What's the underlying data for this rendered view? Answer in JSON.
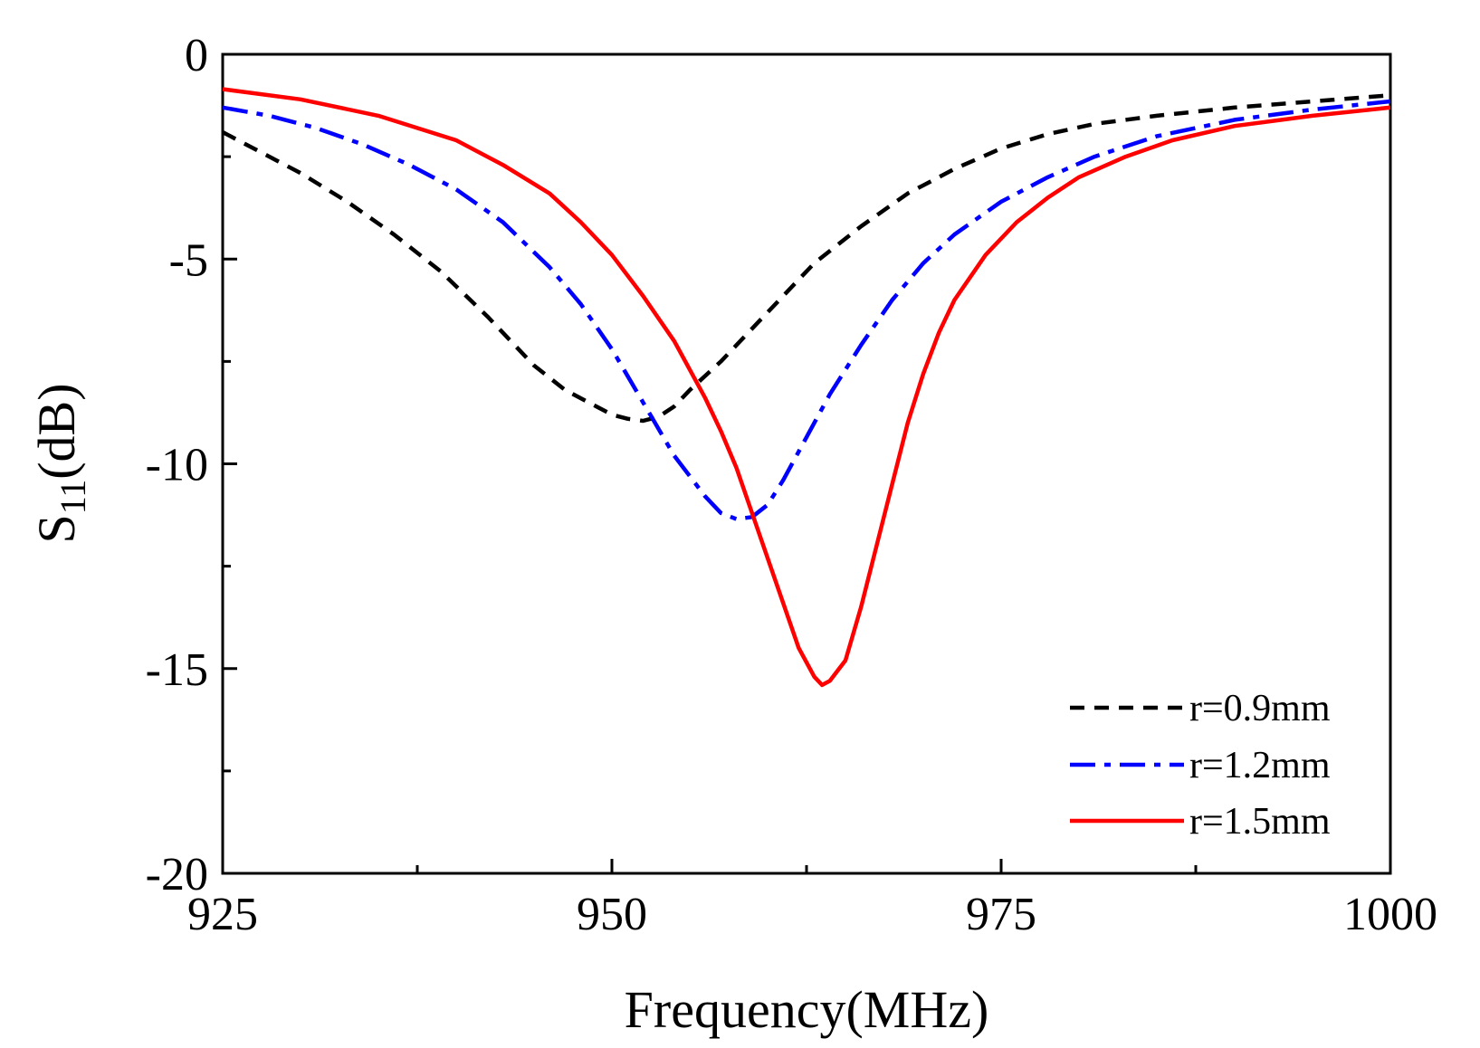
{
  "chart_data": {
    "type": "line",
    "title": "",
    "xlabel": "Frequency(MHz)",
    "ylabel_main": "S",
    "ylabel_sub": "11",
    "ylabel_unit": "(dB)",
    "xlim": [
      925,
      1000
    ],
    "ylim": [
      -20,
      0
    ],
    "xticks": [
      925,
      950,
      975,
      1000
    ],
    "xtick_labels": [
      "925",
      "950",
      "975",
      "1000"
    ],
    "xminor": [
      937.5,
      962.5,
      987.5
    ],
    "yticks": [
      0,
      -5,
      -10,
      -15,
      -20
    ],
    "ytick_labels": [
      "0",
      "-5",
      "-10",
      "-15",
      "-20"
    ],
    "yminor": [
      -2.5,
      -7.5,
      -12.5,
      -17.5
    ],
    "legend_position": "bottom-right",
    "grid": false,
    "series": [
      {
        "name": "r=0.9mm",
        "color": "#000000",
        "style": "dashed",
        "x": [
          925,
          927,
          930,
          933,
          936,
          939,
          942,
          945,
          947,
          949,
          950,
          951,
          952,
          953,
          954,
          955,
          957,
          959,
          961,
          963,
          966,
          969,
          972,
          975,
          978,
          981,
          985,
          990,
          995,
          1000
        ],
        "y": [
          -1.9,
          -2.3,
          -2.9,
          -3.6,
          -4.4,
          -5.3,
          -6.4,
          -7.6,
          -8.2,
          -8.6,
          -8.8,
          -8.9,
          -8.95,
          -8.85,
          -8.6,
          -8.2,
          -7.5,
          -6.7,
          -5.9,
          -5.1,
          -4.2,
          -3.4,
          -2.8,
          -2.3,
          -1.95,
          -1.7,
          -1.5,
          -1.3,
          -1.15,
          -1.0
        ]
      },
      {
        "name": "r=1.2mm",
        "color": "#0000ff",
        "style": "dashdot",
        "x": [
          925,
          928,
          931,
          934,
          937,
          940,
          943,
          946,
          948,
          950,
          952,
          954,
          956,
          957,
          958,
          959,
          960,
          961,
          962,
          964,
          966,
          968,
          970,
          972,
          975,
          978,
          981,
          985,
          990,
          995,
          1000
        ],
        "y": [
          -1.3,
          -1.5,
          -1.8,
          -2.2,
          -2.7,
          -3.3,
          -4.1,
          -5.2,
          -6.1,
          -7.2,
          -8.5,
          -9.8,
          -10.8,
          -11.2,
          -11.35,
          -11.3,
          -11.0,
          -10.4,
          -9.7,
          -8.3,
          -7.1,
          -6.0,
          -5.1,
          -4.4,
          -3.6,
          -3.0,
          -2.5,
          -2.0,
          -1.6,
          -1.35,
          -1.15
        ]
      },
      {
        "name": "r=1.5mm",
        "color": "#ff0000",
        "style": "solid",
        "x": [
          925,
          930,
          935,
          940,
          943,
          946,
          948,
          950,
          952,
          954,
          955,
          956,
          957,
          958,
          959,
          960,
          961,
          962,
          963,
          963.5,
          964,
          965,
          966,
          967,
          968,
          969,
          970,
          971,
          972,
          974,
          976,
          978,
          980,
          983,
          986,
          990,
          995,
          1000
        ],
        "y": [
          -0.85,
          -1.1,
          -1.5,
          -2.1,
          -2.7,
          -3.4,
          -4.1,
          -4.9,
          -5.9,
          -7.0,
          -7.7,
          -8.4,
          -9.2,
          -10.1,
          -11.2,
          -12.3,
          -13.4,
          -14.5,
          -15.2,
          -15.4,
          -15.3,
          -14.8,
          -13.5,
          -12.0,
          -10.5,
          -9.0,
          -7.8,
          -6.8,
          -6.0,
          -4.9,
          -4.1,
          -3.5,
          -3.0,
          -2.5,
          -2.1,
          -1.75,
          -1.5,
          -1.3
        ]
      }
    ]
  }
}
